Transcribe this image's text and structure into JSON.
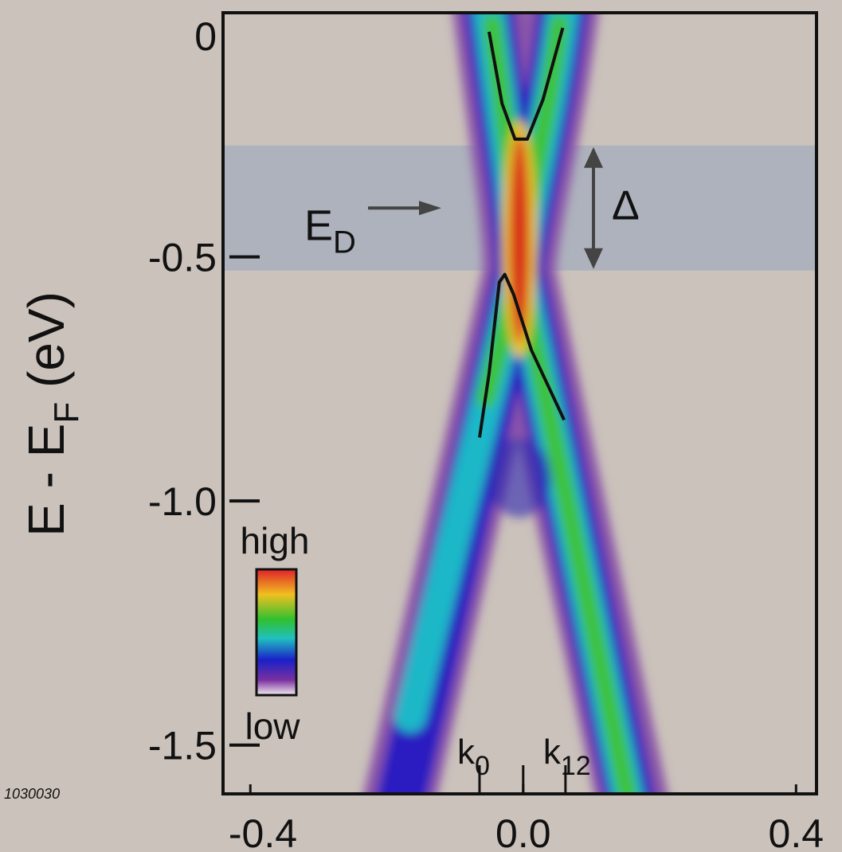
{
  "chart_data": {
    "type": "line",
    "y_label": {
      "main": "E - E",
      "sub": "F",
      "unit": "(eV)"
    },
    "xlim": [
      -0.44,
      0.43
    ],
    "ylim": [
      -1.6,
      0
    ],
    "xticks": [
      -0.4,
      {
        "value": 0,
        "label": "0.0"
      },
      0.4
    ],
    "yticks": [
      0,
      -0.5,
      {
        "value": -1,
        "label": "-1.0"
      },
      -1.5
    ],
    "series": [
      {
        "color": "#111111",
        "x": [
          -0.05,
          -0.031,
          -0.012,
          0.006,
          0.029,
          0.058
        ],
        "values": [
          -0.039,
          -0.186,
          -0.259,
          -0.259,
          -0.178,
          -0.031
        ]
      },
      {
        "color": "#111111",
        "x": [
          -0.064,
          -0.05,
          -0.035,
          -0.027,
          -0.014,
          0.012,
          0.06
        ],
        "values": [
          -0.87,
          -0.739,
          -0.552,
          -0.536,
          -0.577,
          -0.691,
          -0.834
        ]
      }
    ],
    "gap_band": {
      "from": -0.272,
      "to": -0.528,
      "label": "Δ",
      "color": "#a9afbd"
    },
    "dirac_point": {
      "label": "E",
      "sub": "D",
      "y": -0.4
    },
    "k_marks": [
      {
        "value": -0.064,
        "label": "k",
        "sub": "0"
      },
      {
        "value": 0
      },
      {
        "value": 0.062,
        "label": "k",
        "sub": "12"
      }
    ],
    "colorbar": {
      "high": "high",
      "low": "low"
    },
    "figure_id": "1030030"
  }
}
